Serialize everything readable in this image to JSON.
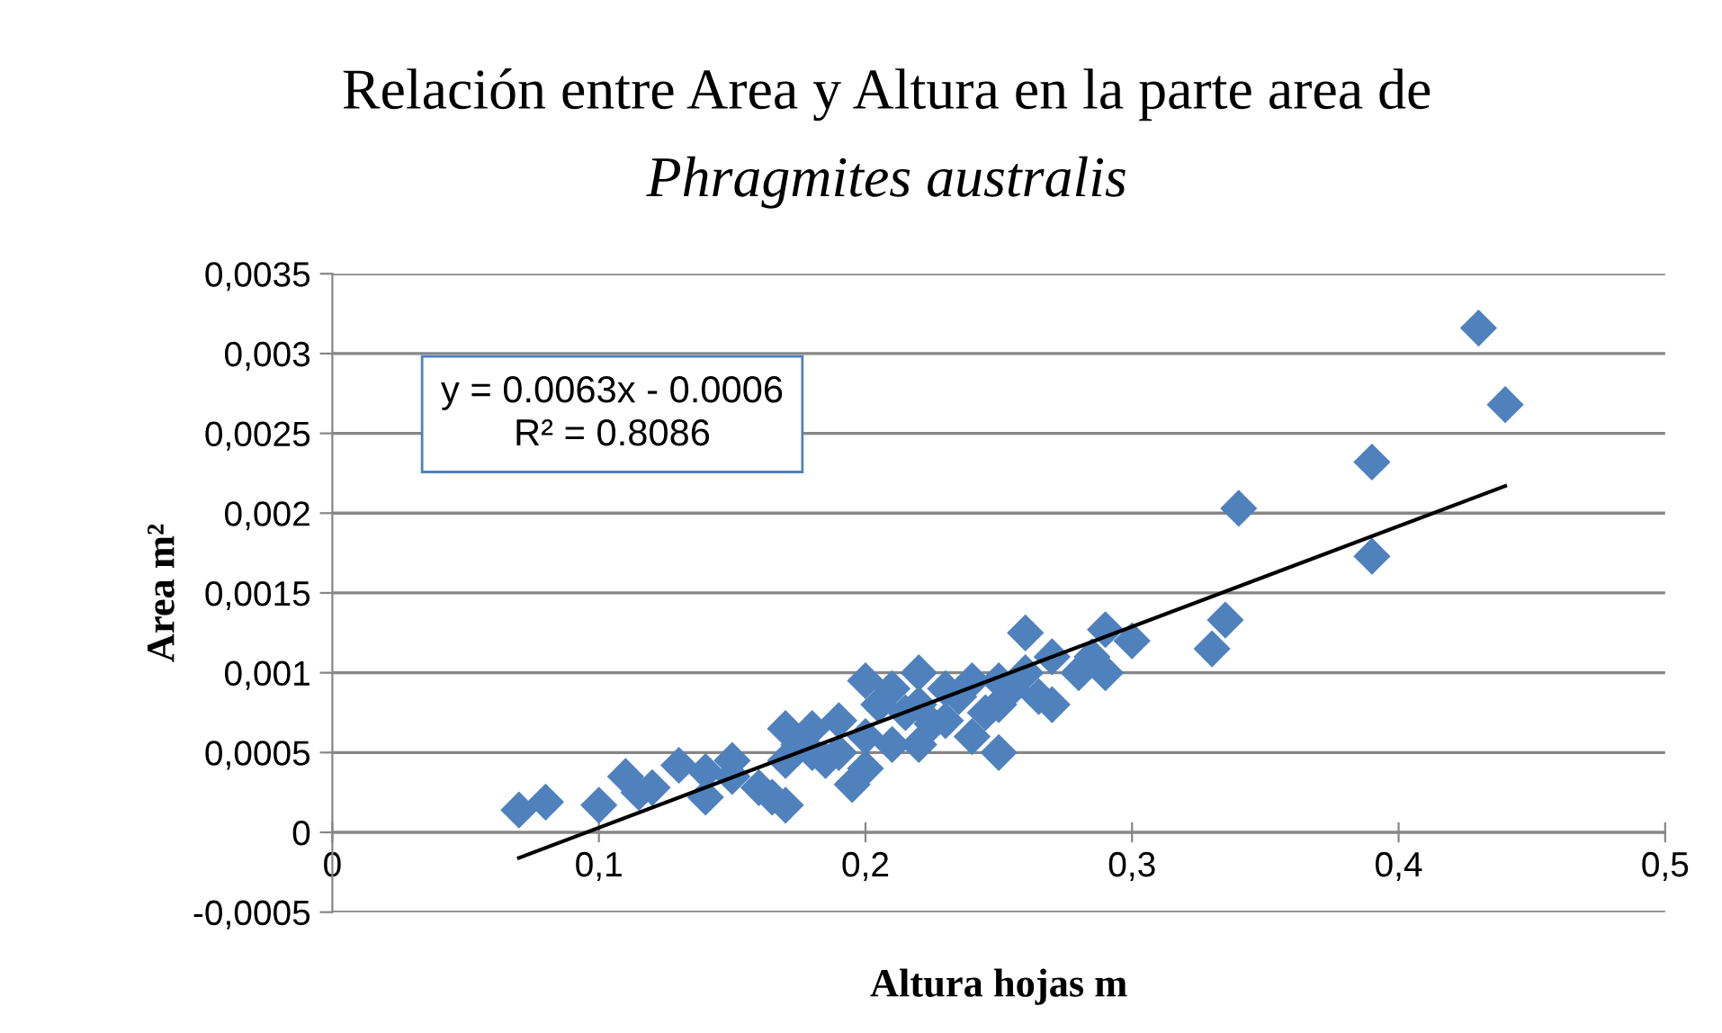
{
  "chart_data": {
    "type": "scatter",
    "title": "Relación entre Area y Altura en la parte area de",
    "subtitle": "Phragmites australis",
    "xlabel": "Altura hojas m",
    "ylabel": "Area m²",
    "annotations": [
      "y = 0.0063x - 0.0006\nR² = 0.8086"
    ],
    "series": [
      {
        "color": "#4f81bd",
        "marker": "diamond",
        "x": [
          0.07,
          0.08,
          0.1,
          0.11,
          0.115,
          0.12,
          0.13,
          0.14,
          0.14,
          0.15,
          0.15,
          0.16,
          0.165,
          0.17,
          0.17,
          0.17,
          0.175,
          0.18,
          0.18,
          0.185,
          0.19,
          0.19,
          0.195,
          0.2,
          0.2,
          0.2,
          0.205,
          0.21,
          0.21,
          0.215,
          0.22,
          0.22,
          0.22,
          0.225,
          0.23,
          0.23,
          0.235,
          0.24,
          0.24,
          0.245,
          0.25,
          0.25,
          0.25,
          0.255,
          0.26,
          0.26,
          0.265,
          0.27,
          0.27,
          0.28,
          0.285,
          0.29,
          0.29,
          0.3,
          0.33,
          0.335,
          0.34,
          0.39,
          0.39,
          0.43,
          0.44
        ],
        "values": [
          0.00014,
          0.00019,
          0.00017,
          0.00035,
          0.00025,
          0.00028,
          0.00042,
          0.00022,
          0.00038,
          0.00045,
          0.00035,
          0.00028,
          0.00022,
          0.00017,
          0.00045,
          0.00065,
          0.00055,
          0.00065,
          0.0005,
          0.00045,
          0.0007,
          0.0005,
          0.0003,
          0.0004,
          0.00095,
          0.0006,
          0.0008,
          0.0009,
          0.00055,
          0.00075,
          0.001,
          0.0008,
          0.00055,
          0.00068,
          0.0009,
          0.0007,
          0.00085,
          0.00095,
          0.0006,
          0.00075,
          0.0005,
          0.0008,
          0.00095,
          0.0009,
          0.00125,
          0.001,
          0.00085,
          0.0008,
          0.0011,
          0.001,
          0.0011,
          0.00127,
          0.001,
          0.0012,
          0.00115,
          0.00133,
          0.00203,
          0.00232,
          0.00173,
          0.00316,
          0.00268
        ]
      },
      {
        "type": "line",
        "color": "#000000",
        "marker": "none",
        "line_style": "solid",
        "x": [
          0.07,
          0.44
        ],
        "values": [
          -0.00016,
          0.00217
        ]
      }
    ],
    "xlim": [
      0,
      0.5
    ],
    "xticks": [
      0,
      {
        "value": 0.1,
        "label": "0,1"
      },
      {
        "value": 0.2,
        "label": "0,2"
      },
      {
        "value": 0.3,
        "label": "0,3"
      },
      {
        "value": 0.4,
        "label": "0,4"
      },
      {
        "value": 0.5,
        "label": "0,5"
      }
    ],
    "ylim": [
      -0.0005,
      0.0035
    ],
    "yticks": [
      {
        "value": -0.0005,
        "label": "-0,0005"
      },
      0,
      {
        "value": 0.0005,
        "label": "0,0005"
      },
      {
        "value": 0.001,
        "label": "0,001"
      },
      {
        "value": 0.0015,
        "label": "0,0015"
      },
      {
        "value": 0.002,
        "label": "0,002"
      },
      {
        "value": 0.0025,
        "label": "0,0025"
      },
      {
        "value": 0.003,
        "label": "0,003"
      },
      {
        "value": 0.0035,
        "label": "0,0035"
      }
    ],
    "grid": "y",
    "legend": false
  }
}
